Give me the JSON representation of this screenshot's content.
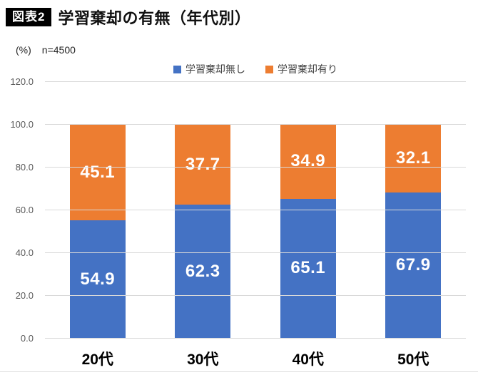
{
  "header": {
    "badge": "図表2",
    "title": "学習棄却の有無（年代別）"
  },
  "meta": {
    "unit": "(%)",
    "sample_size": "n=4500"
  },
  "colors": {
    "series_blue": "#4472C4",
    "series_orange": "#ED7D31",
    "gridline": "#d9d9d9",
    "axis_tick_text": "#595959"
  },
  "chart_data": {
    "type": "bar",
    "stacked": true,
    "percent_stacked": true,
    "title": "学習棄却の有無（年代別）",
    "unit_label": "(%)",
    "sample_note": "n=4500",
    "categories": [
      "20代",
      "30代",
      "40代",
      "50代"
    ],
    "series": [
      {
        "name": "学習棄却無し",
        "color": "#4472C4",
        "values": [
          54.9,
          62.3,
          65.1,
          67.9
        ]
      },
      {
        "name": "学習棄却有り",
        "color": "#ED7D31",
        "values": [
          45.1,
          37.7,
          34.9,
          32.1
        ]
      }
    ],
    "xlabel": "",
    "ylabel": "(%)",
    "ylim": [
      0,
      120
    ],
    "ytick_step": 20,
    "ytick_labels": [
      "0.0",
      "20.0",
      "40.0",
      "60.0",
      "80.0",
      "100.0",
      "120.0"
    ],
    "grid": true,
    "legend_position": "top",
    "data_labels": "inside-center"
  }
}
